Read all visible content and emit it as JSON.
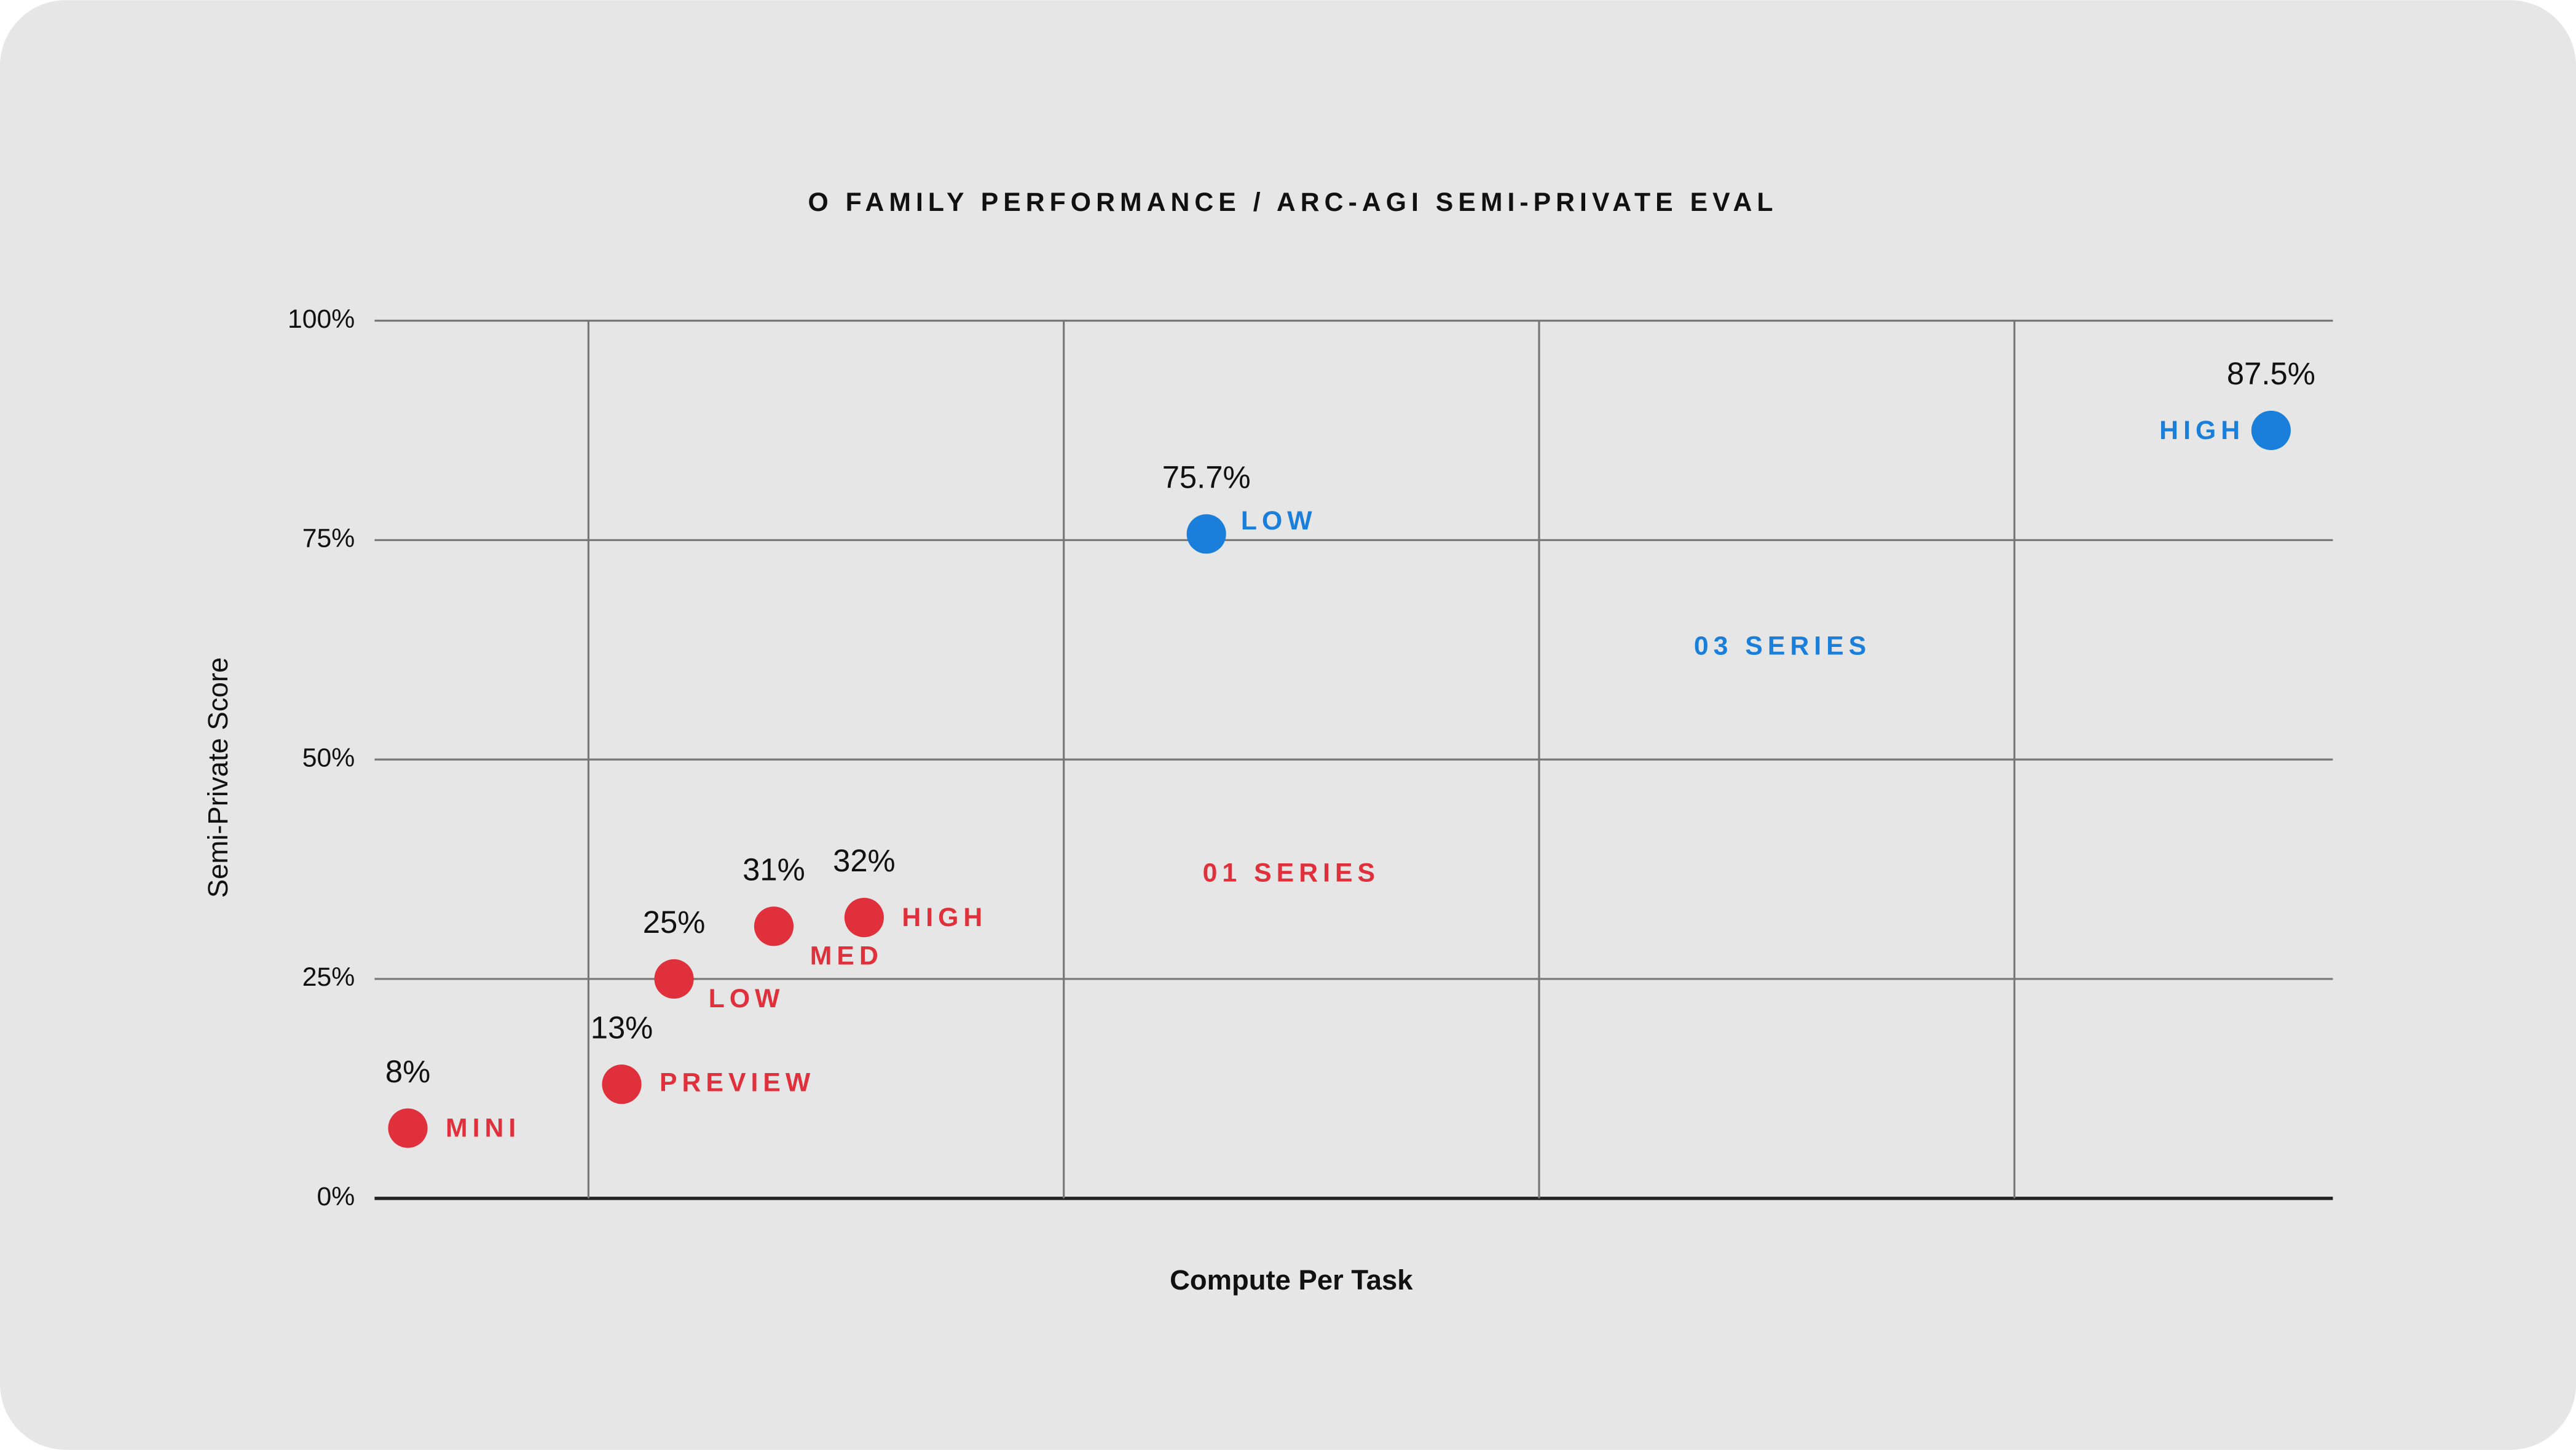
{
  "chart_data": {
    "type": "scatter",
    "title": "O FAMILY PERFORMANCE / ARC-AGI SEMI-PRIVATE EVAL",
    "x_label": "Compute Per Task",
    "y_label": "Semi-Private Score",
    "xlim": [
      0.55,
      4.67
    ],
    "xticks": [
      1,
      2,
      3,
      4
    ],
    "ylim": [
      0,
      100
    ],
    "yticks": [
      {
        "value": 0,
        "label": "0%"
      },
      {
        "value": 25,
        "label": "25%"
      },
      {
        "value": 50,
        "label": "50%"
      },
      {
        "value": 75,
        "label": "75%"
      },
      {
        "value": 100,
        "label": "100%"
      }
    ],
    "grid": true,
    "series": [
      {
        "name": "01 SERIES",
        "color": "#e0303b",
        "x": [
          0.62,
          1.07,
          1.18,
          1.39,
          1.58
        ],
        "values": [
          8,
          13,
          25,
          31,
          32
        ],
        "value_labels": [
          "8%",
          "13%",
          "25%",
          "31%",
          "32%"
        ],
        "point_labels": [
          "MINI",
          "PREVIEW",
          "LOW",
          "MED",
          "HIGH"
        ]
      },
      {
        "name": "03 SERIES",
        "color": "#1a7fdb",
        "x": [
          2.3,
          4.54
        ],
        "values": [
          75.7,
          87.5
        ],
        "value_labels": [
          "75.7%",
          "87.5%"
        ],
        "point_labels": [
          "LOW",
          "HIGH"
        ]
      }
    ]
  }
}
